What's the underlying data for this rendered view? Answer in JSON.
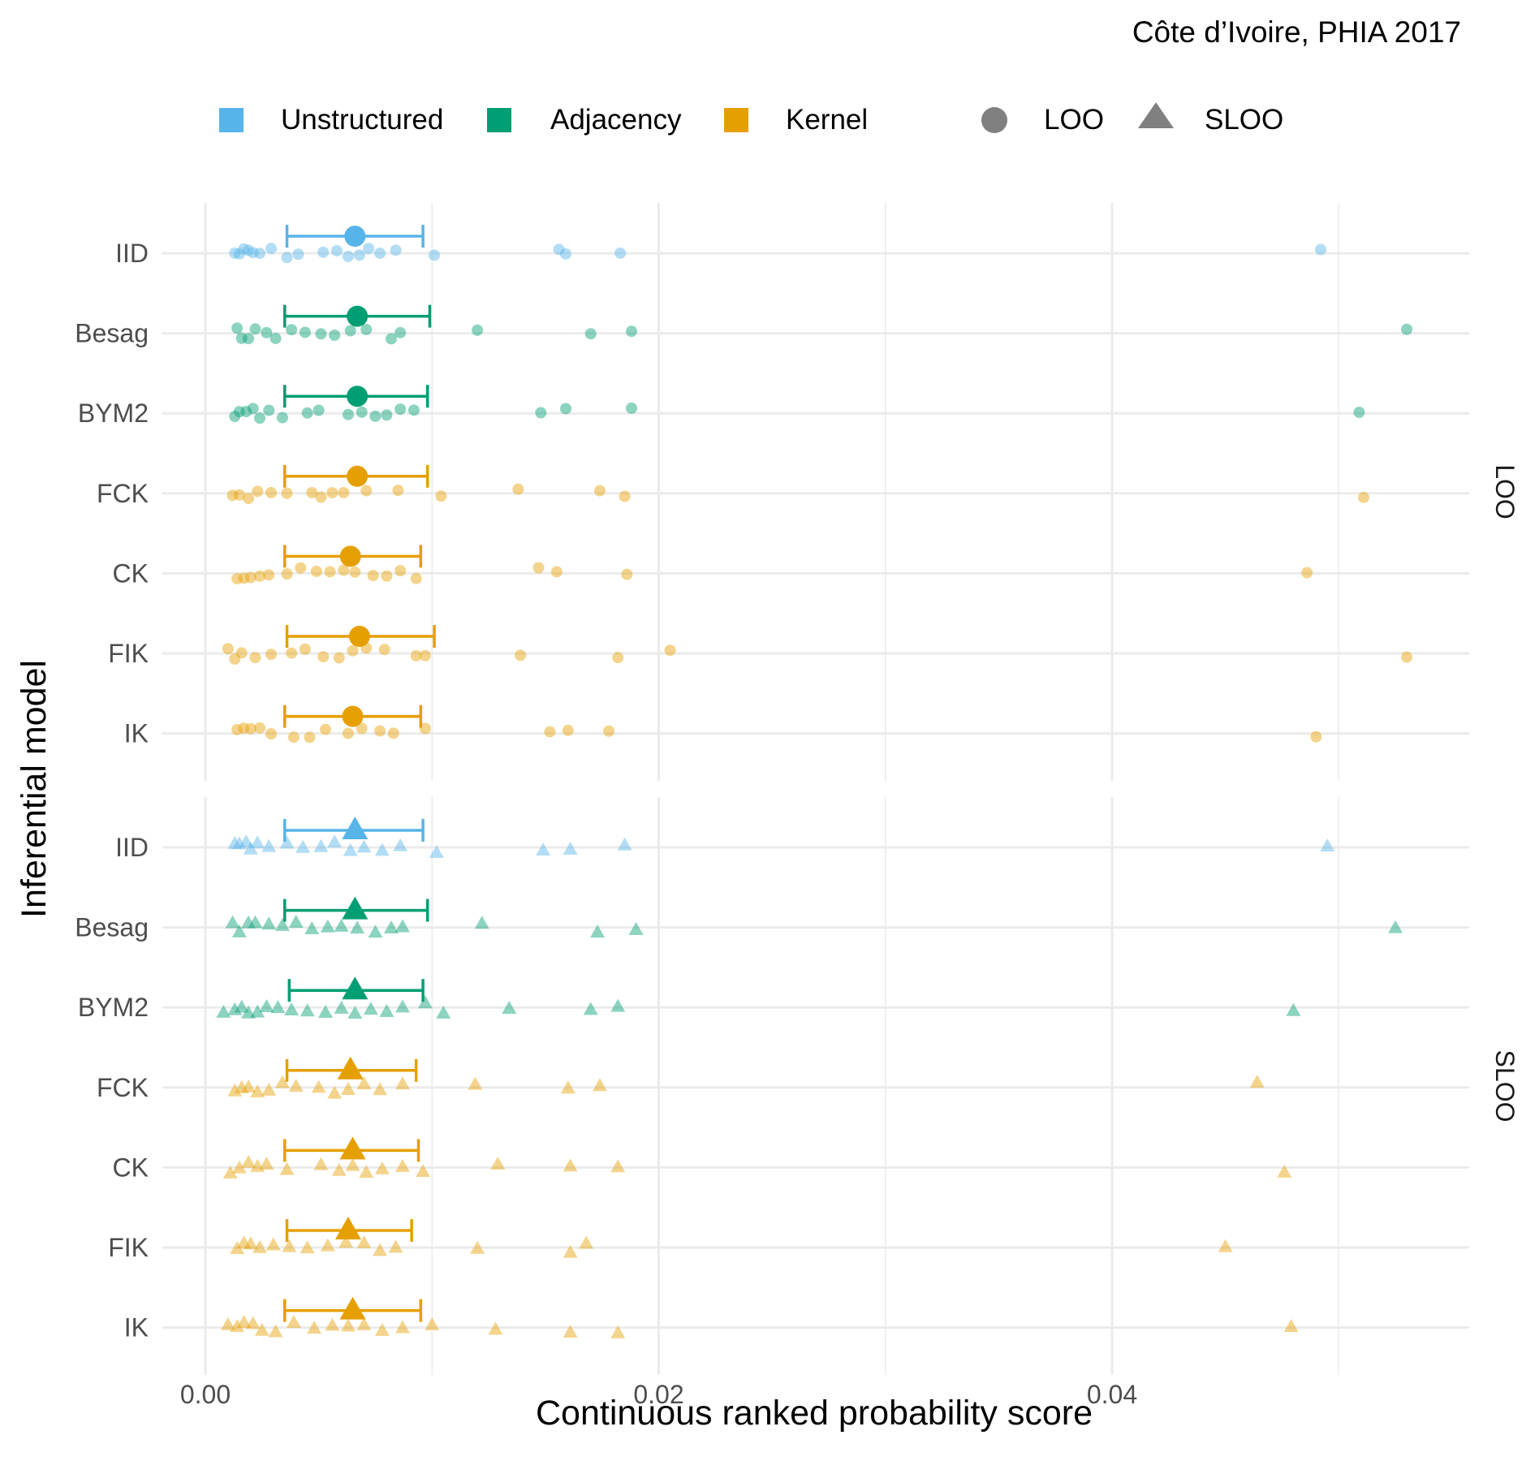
{
  "chart_data": {
    "type": "scatter",
    "title": "Côte d’Ivoire, PHIA 2017",
    "xlabel": "Continuous ranked probability score",
    "ylabel": "Inferential model",
    "xlim": [
      -0.0012,
      0.0558
    ],
    "x_ticks": [
      0.0,
      0.02,
      0.04
    ],
    "x_tick_labels": [
      "0.00",
      "0.02",
      "0.04"
    ],
    "grid": true,
    "legend_position": "top",
    "legend": {
      "colors": [
        {
          "label": "Unstructured",
          "color": "#56B4E9"
        },
        {
          "label": "Adjacency",
          "color": "#009E73"
        },
        {
          "label": "Kernel",
          "color": "#E69F00"
        }
      ],
      "shapes": [
        {
          "label": "LOO",
          "shape": "circle"
        },
        {
          "label": "SLOO",
          "shape": "triangle"
        }
      ]
    },
    "models": [
      "IID",
      "Besag",
      "BYM2",
      "FCK",
      "CK",
      "FIK",
      "IK"
    ],
    "model_groups": {
      "IID": "Unstructured",
      "Besag": "Adjacency",
      "BYM2": "Adjacency",
      "FCK": "Kernel",
      "CK": "Kernel",
      "FIK": "Kernel",
      "IK": "Kernel"
    },
    "colors": {
      "Unstructured": "#56B4E9",
      "Adjacency": "#009E73",
      "Kernel": "#E69F00"
    },
    "panels": [
      {
        "name": "LOO",
        "shape": "circle",
        "rows": [
          {
            "model": "IID",
            "mean": 0.0066,
            "lower": 0.0036,
            "upper": 0.0096,
            "points": [
              0.0013,
              0.0015,
              0.0017,
              0.0019,
              0.0021,
              0.0024,
              0.0029,
              0.0036,
              0.0041,
              0.0052,
              0.0058,
              0.0063,
              0.0068,
              0.0072,
              0.0077,
              0.0084,
              0.0101,
              0.0156,
              0.0159,
              0.0183,
              0.0492
            ]
          },
          {
            "model": "Besag",
            "mean": 0.0067,
            "lower": 0.0035,
            "upper": 0.0099,
            "points": [
              0.0014,
              0.0016,
              0.0019,
              0.0022,
              0.0027,
              0.0031,
              0.0038,
              0.0044,
              0.0051,
              0.0057,
              0.0064,
              0.0071,
              0.0082,
              0.0086,
              0.012,
              0.017,
              0.0188,
              0.053
            ]
          },
          {
            "model": "BYM2",
            "mean": 0.0067,
            "lower": 0.0035,
            "upper": 0.0098,
            "points": [
              0.0013,
              0.0015,
              0.0018,
              0.0021,
              0.0024,
              0.0028,
              0.0034,
              0.0045,
              0.005,
              0.0063,
              0.0069,
              0.0075,
              0.008,
              0.0086,
              0.0092,
              0.0148,
              0.0159,
              0.0188,
              0.0509
            ]
          },
          {
            "model": "FCK",
            "mean": 0.0067,
            "lower": 0.0035,
            "upper": 0.0098,
            "points": [
              0.0012,
              0.0015,
              0.0019,
              0.0023,
              0.0029,
              0.0036,
              0.0047,
              0.0051,
              0.0056,
              0.0061,
              0.0071,
              0.0085,
              0.0104,
              0.0138,
              0.0174,
              0.0185,
              0.0511
            ]
          },
          {
            "model": "CK",
            "mean": 0.0064,
            "lower": 0.0035,
            "upper": 0.0095,
            "points": [
              0.0014,
              0.0017,
              0.002,
              0.0024,
              0.0028,
              0.0036,
              0.0042,
              0.0049,
              0.0055,
              0.0061,
              0.0066,
              0.0074,
              0.008,
              0.0086,
              0.0093,
              0.0147,
              0.0155,
              0.0186,
              0.0486
            ]
          },
          {
            "model": "FIK",
            "mean": 0.0068,
            "lower": 0.0036,
            "upper": 0.0101,
            "points": [
              0.001,
              0.0013,
              0.0016,
              0.0022,
              0.0029,
              0.0038,
              0.0044,
              0.0052,
              0.0059,
              0.0065,
              0.0071,
              0.0079,
              0.0093,
              0.0097,
              0.0139,
              0.0182,
              0.0205,
              0.053
            ]
          },
          {
            "model": "IK",
            "mean": 0.0065,
            "lower": 0.0035,
            "upper": 0.0095,
            "points": [
              0.0014,
              0.0017,
              0.002,
              0.0024,
              0.0029,
              0.0039,
              0.0046,
              0.0053,
              0.0063,
              0.0069,
              0.0077,
              0.0083,
              0.0097,
              0.0152,
              0.016,
              0.0178,
              0.049
            ]
          }
        ]
      },
      {
        "name": "SLOO",
        "shape": "triangle",
        "rows": [
          {
            "model": "IID",
            "mean": 0.0066,
            "lower": 0.0035,
            "upper": 0.0096,
            "points": [
              0.0013,
              0.0015,
              0.0018,
              0.002,
              0.0023,
              0.0028,
              0.0036,
              0.0043,
              0.0051,
              0.0057,
              0.0064,
              0.007,
              0.0078,
              0.0086,
              0.0102,
              0.0149,
              0.0161,
              0.0185,
              0.0495
            ]
          },
          {
            "model": "Besag",
            "mean": 0.0066,
            "lower": 0.0035,
            "upper": 0.0098,
            "points": [
              0.0012,
              0.0015,
              0.0019,
              0.0022,
              0.0028,
              0.0034,
              0.004,
              0.0047,
              0.0054,
              0.006,
              0.0067,
              0.0075,
              0.0082,
              0.0087,
              0.0122,
              0.0173,
              0.019,
              0.0525
            ]
          },
          {
            "model": "BYM2",
            "mean": 0.0066,
            "lower": 0.0037,
            "upper": 0.0096,
            "points": [
              0.0008,
              0.0013,
              0.0016,
              0.0019,
              0.0023,
              0.0027,
              0.0032,
              0.0038,
              0.0045,
              0.0053,
              0.006,
              0.0066,
              0.0073,
              0.008,
              0.0087,
              0.0097,
              0.0105,
              0.0134,
              0.017,
              0.0182,
              0.048
            ]
          },
          {
            "model": "FCK",
            "mean": 0.0064,
            "lower": 0.0036,
            "upper": 0.0093,
            "points": [
              0.0013,
              0.0016,
              0.0019,
              0.0023,
              0.0028,
              0.0034,
              0.004,
              0.005,
              0.0057,
              0.0063,
              0.007,
              0.0077,
              0.0087,
              0.0119,
              0.016,
              0.0174,
              0.0464
            ]
          },
          {
            "model": "CK",
            "mean": 0.0065,
            "lower": 0.0035,
            "upper": 0.0094,
            "points": [
              0.0011,
              0.0015,
              0.0019,
              0.0023,
              0.0027,
              0.0036,
              0.0051,
              0.0059,
              0.0065,
              0.0071,
              0.0078,
              0.0087,
              0.0096,
              0.0129,
              0.0161,
              0.0182,
              0.0476
            ]
          },
          {
            "model": "FIK",
            "mean": 0.0063,
            "lower": 0.0036,
            "upper": 0.0091,
            "points": [
              0.0014,
              0.0017,
              0.002,
              0.0024,
              0.003,
              0.0037,
              0.0045,
              0.0054,
              0.0062,
              0.007,
              0.0077,
              0.0084,
              0.012,
              0.0161,
              0.0168,
              0.045
            ]
          },
          {
            "model": "IK",
            "mean": 0.0065,
            "lower": 0.0035,
            "upper": 0.0095,
            "points": [
              0.001,
              0.0014,
              0.0017,
              0.0021,
              0.0025,
              0.0031,
              0.0039,
              0.0048,
              0.0056,
              0.0063,
              0.007,
              0.0078,
              0.0087,
              0.01,
              0.0128,
              0.0161,
              0.0182,
              0.0479
            ]
          }
        ]
      }
    ]
  }
}
